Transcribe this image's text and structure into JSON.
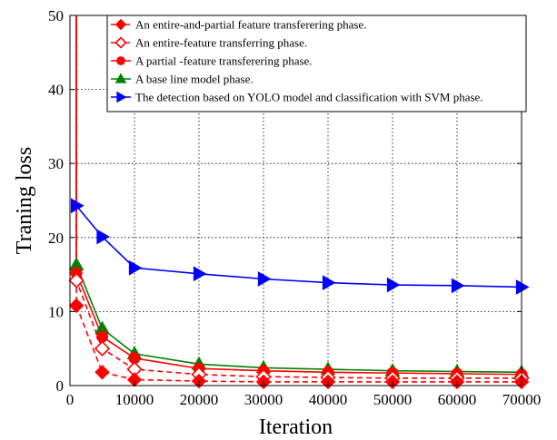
{
  "chart_data": {
    "type": "line",
    "xlabel": "Iteration",
    "ylabel": "Traning loss",
    "xlim": [
      0,
      70000
    ],
    "ylim": [
      0,
      50
    ],
    "xticks": [
      0,
      10000,
      20000,
      30000,
      40000,
      50000,
      60000,
      70000
    ],
    "yticks": [
      0,
      10,
      20,
      30,
      40,
      50
    ],
    "grid": true,
    "legend_position": "top-right",
    "x": [
      1000,
      5000,
      10000,
      20000,
      30000,
      40000,
      50000,
      60000,
      70000
    ],
    "series": [
      {
        "name": "An entire-and-partial feature transferering  phase.",
        "marker": "filled-diamond",
        "line": "dashed",
        "color": "#ff0000",
        "y0": 50,
        "values": [
          10.8,
          1.8,
          0.8,
          0.6,
          0.5,
          0.5,
          0.5,
          0.5,
          0.5
        ]
      },
      {
        "name": "An entire-feature transferring phase.",
        "marker": "open-diamond",
        "line": "dashed",
        "color": "#ff0000",
        "y0": 50,
        "values": [
          14.2,
          5.0,
          2.2,
          1.5,
          1.2,
          1.1,
          1.0,
          1.0,
          1.0
        ]
      },
      {
        "name": "A partial -feature transferering phase.",
        "marker": "filled-circle",
        "line": "solid",
        "color": "#ff0000",
        "y0": 50,
        "values": [
          15.2,
          6.6,
          3.7,
          2.3,
          2.0,
          1.8,
          1.7,
          1.6,
          1.5
        ]
      },
      {
        "name": "A base line model phase.",
        "marker": "filled-triangle-up",
        "line": "solid",
        "color": "#008000",
        "y0": 50,
        "values": [
          16.3,
          7.7,
          4.3,
          2.9,
          2.4,
          2.2,
          2.0,
          1.9,
          1.8
        ]
      },
      {
        "name": "The detection based on YOLO model and classification with SVM phase.",
        "marker": "filled-triangle-right",
        "line": "solid",
        "color": "#0000ff",
        "y0": 50,
        "values": [
          24.3,
          20.1,
          15.9,
          15.1,
          14.4,
          13.9,
          13.6,
          13.5,
          13.3
        ]
      }
    ]
  }
}
